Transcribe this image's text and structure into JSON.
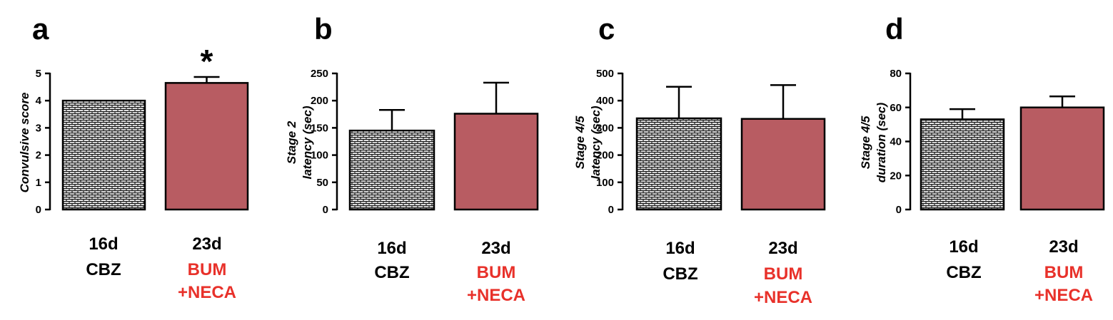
{
  "chart_data": [
    {
      "type": "bar",
      "panel": "a",
      "ylabel": "Convulsive score",
      "ylim": [
        0,
        5
      ],
      "yticks": [
        0,
        1,
        2,
        3,
        4,
        5
      ],
      "categories": [
        {
          "line1": "16d",
          "line2": "CBZ",
          "line3": "",
          "pattern": "brick",
          "color": "#000000"
        },
        {
          "line1": "23d",
          "line2": "BUM",
          "line3": "+NECA",
          "pattern": "solid",
          "color": "#e8312a"
        }
      ],
      "values": [
        4.0,
        4.65
      ],
      "errors": [
        0,
        0.22
      ],
      "annotations": [
        "",
        "*"
      ]
    },
    {
      "type": "bar",
      "panel": "b",
      "ylabel": "Stage 2\nlatency (sec)",
      "ylim": [
        0,
        250
      ],
      "yticks": [
        0,
        50,
        100,
        150,
        200,
        250
      ],
      "categories": [
        {
          "line1": "16d",
          "line2": "CBZ",
          "line3": "",
          "pattern": "brick",
          "color": "#000000"
        },
        {
          "line1": "23d",
          "line2": "BUM",
          "line3": "+NECA",
          "pattern": "solid",
          "color": "#e8312a"
        }
      ],
      "values": [
        145,
        176
      ],
      "errors": [
        38,
        57
      ],
      "annotations": [
        "",
        ""
      ]
    },
    {
      "type": "bar",
      "panel": "c",
      "ylabel": "Stage 4/5\nlatency (sec)",
      "ylim": [
        0,
        500
      ],
      "yticks": [
        0,
        100,
        200,
        300,
        400,
        500
      ],
      "categories": [
        {
          "line1": "16d",
          "line2": "CBZ",
          "line3": "",
          "pattern": "brick",
          "color": "#000000"
        },
        {
          "line1": "23d",
          "line2": "BUM",
          "line3": "+NECA",
          "pattern": "solid",
          "color": "#e8312a"
        }
      ],
      "values": [
        335,
        333
      ],
      "errors": [
        116,
        124
      ],
      "annotations": [
        "",
        ""
      ]
    },
    {
      "type": "bar",
      "panel": "d",
      "ylabel": "Stage 4/5\nduration (sec)",
      "ylim": [
        0,
        80
      ],
      "yticks": [
        0,
        20,
        40,
        60,
        80
      ],
      "categories": [
        {
          "line1": "16d",
          "line2": "CBZ",
          "line3": "",
          "pattern": "brick",
          "color": "#000000"
        },
        {
          "line1": "23d",
          "line2": "BUM",
          "line3": "+NECA",
          "pattern": "solid",
          "color": "#e8312a"
        }
      ],
      "values": [
        53,
        60
      ],
      "errors": [
        6,
        6.5
      ],
      "annotations": [
        "",
        ""
      ]
    }
  ],
  "colors": {
    "bar_solid_fill": "#b85c62",
    "pattern_bg": "#ffffff",
    "pattern_ink": "#1a1a1a"
  }
}
